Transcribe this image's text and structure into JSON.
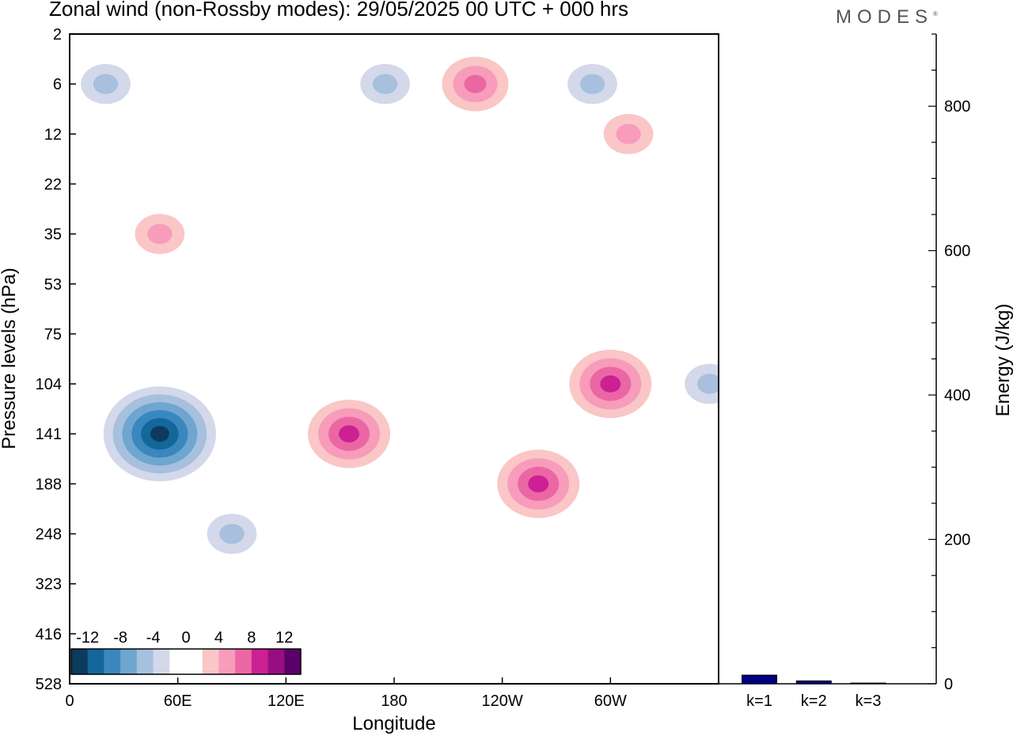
{
  "title": "Zonal wind (non-Rossby modes):  29/05/2025  00 UTC  + 000 hrs",
  "logo": "MODES",
  "chart_data": [
    {
      "type": "heatmap",
      "title": "Zonal wind (non-Rossby modes):  29/05/2025  00 UTC  + 000 hrs",
      "xlabel": "Longitude",
      "ylabel": "Pressure levels (hPa)",
      "x_ticks": [
        "0",
        "60E",
        "120E",
        "180",
        "120W",
        "60W"
      ],
      "x_tick_values": [
        0,
        60,
        120,
        180,
        240,
        300
      ],
      "xlim": [
        0,
        360
      ],
      "y_ticks": [
        "2",
        "6",
        "12",
        "22",
        "35",
        "53",
        "75",
        "104",
        "141",
        "188",
        "248",
        "323",
        "416",
        "528"
      ],
      "colorbar": {
        "labels": [
          "-12",
          "-8",
          "-4",
          "0",
          "4",
          "8",
          "12"
        ],
        "colors": [
          "#0c3b5e",
          "#14679a",
          "#3a87bf",
          "#6fa6cf",
          "#a6c0de",
          "#d3d8ea",
          "#ffffff",
          "#ffffff",
          "#fac6c6",
          "#f79cbb",
          "#eb67a4",
          "#cc2094",
          "#980e82",
          "#5a0069"
        ]
      },
      "features": [
        {
          "kind": "neg",
          "lon": 50,
          "level": 141,
          "peak": -14
        },
        {
          "kind": "neg",
          "lon": 90,
          "level": 248,
          "peak": -6
        },
        {
          "kind": "neg",
          "lon": 20,
          "level": 6,
          "peak": -5
        },
        {
          "kind": "neg",
          "lon": 175,
          "level": 6,
          "peak": -5
        },
        {
          "kind": "neg",
          "lon": 290,
          "level": 6,
          "peak": -6
        },
        {
          "kind": "neg",
          "lon": 355,
          "level": 104,
          "peak": -6
        },
        {
          "kind": "pos",
          "lon": 155,
          "level": 141,
          "peak": 9
        },
        {
          "kind": "pos",
          "lon": 260,
          "level": 188,
          "peak": 9
        },
        {
          "kind": "pos",
          "lon": 300,
          "level": 104,
          "peak": 10
        },
        {
          "kind": "pos",
          "lon": 225,
          "level": 6,
          "peak": 7
        },
        {
          "kind": "pos",
          "lon": 50,
          "level": 35,
          "peak": 6
        },
        {
          "kind": "pos",
          "lon": 310,
          "level": 12,
          "peak": 6
        }
      ]
    },
    {
      "type": "bar",
      "categories": [
        "k=1",
        "k=2",
        "k=3"
      ],
      "values": [
        12,
        4,
        1
      ],
      "ylabel": "Energy (J/kg)",
      "ylim": [
        0,
        900
      ],
      "y_ticks": [
        0,
        200,
        400,
        600,
        800
      ],
      "bar_color": "#000080"
    }
  ]
}
